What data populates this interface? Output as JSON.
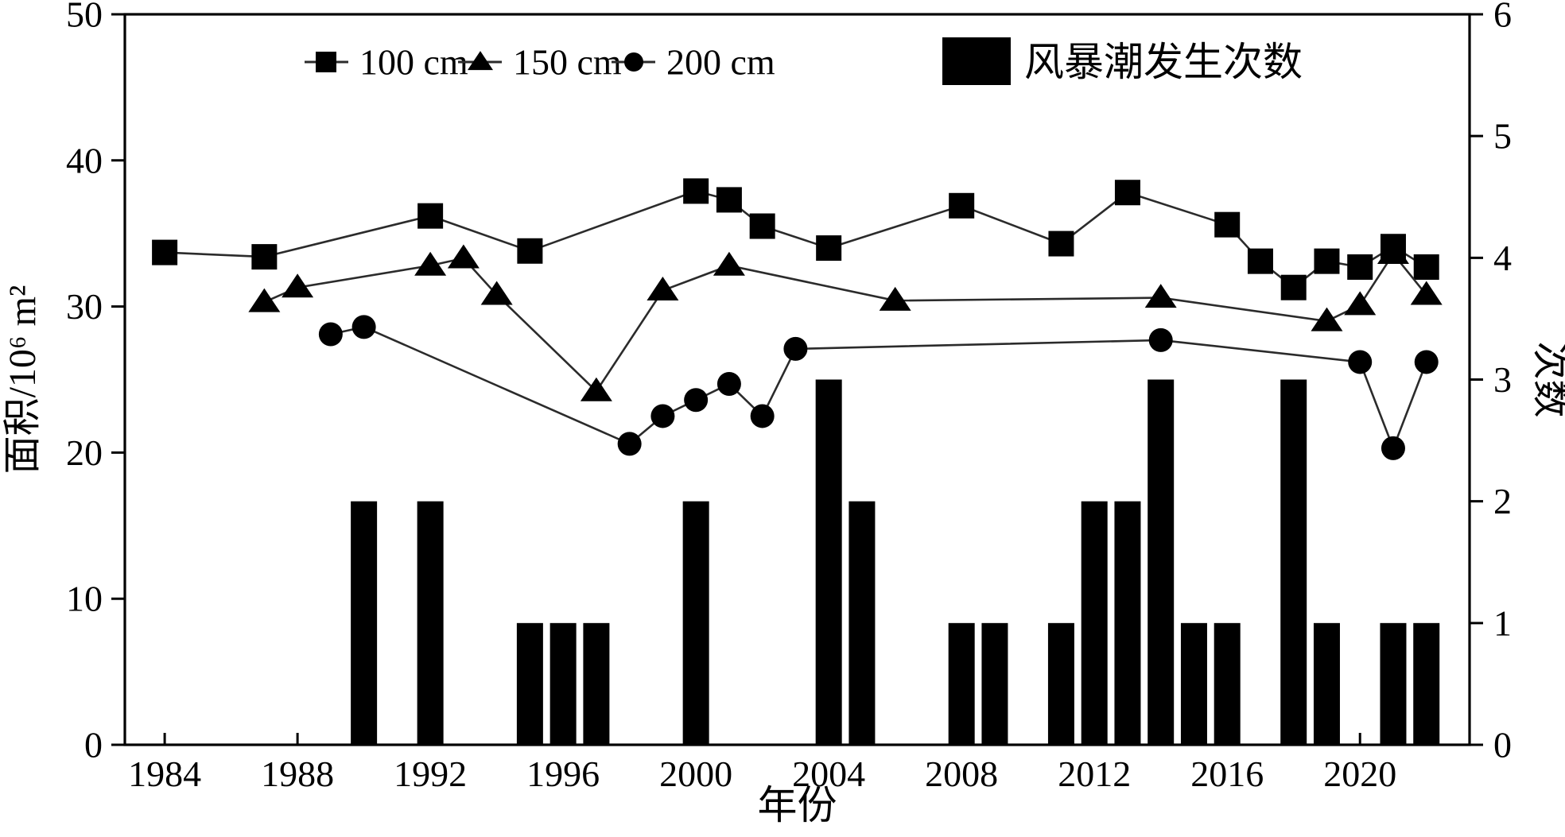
{
  "chart_data": {
    "type": "line+bar",
    "title": "",
    "x_axis": {
      "label": "年份",
      "min": 1982.8,
      "max": 2023.3,
      "tick_labels": [
        1984,
        1988,
        1992,
        1996,
        2000,
        2004,
        2008,
        2012,
        2016,
        2020
      ]
    },
    "left_axis": {
      "label": "面积/10⁶ m²",
      "min": 0,
      "max": 50,
      "ticks": [
        0,
        10,
        20,
        30,
        40,
        50
      ]
    },
    "right_axis": {
      "label": "次数",
      "min": 0,
      "max": 6,
      "ticks": [
        0,
        1,
        2,
        3,
        4,
        5,
        6
      ]
    },
    "grid": "off",
    "legend_position": "top-inside",
    "series": [
      {
        "name": "100 cm",
        "marker": "square",
        "color": "#000000",
        "points": [
          [
            1984,
            33.7
          ],
          [
            1987,
            33.4
          ],
          [
            1992,
            36.2
          ],
          [
            1995,
            33.8
          ],
          [
            2000,
            37.9
          ],
          [
            2001,
            37.3
          ],
          [
            2002,
            35.5
          ],
          [
            2004,
            34.0
          ],
          [
            2008,
            36.9
          ],
          [
            2011,
            34.3
          ],
          [
            2013,
            37.8
          ],
          [
            2016,
            35.6
          ],
          [
            2017,
            33.1
          ],
          [
            2018,
            31.3
          ],
          [
            2019,
            33.1
          ],
          [
            2020,
            32.7
          ],
          [
            2021,
            34.1
          ],
          [
            2022,
            32.7
          ]
        ]
      },
      {
        "name": "150 cm",
        "marker": "triangle",
        "color": "#000000",
        "points": [
          [
            1987,
            30.3
          ],
          [
            1988,
            31.3
          ],
          [
            1992,
            32.8
          ],
          [
            1993,
            33.3
          ],
          [
            1994,
            30.8
          ],
          [
            1997,
            24.2
          ],
          [
            1999,
            31.1
          ],
          [
            2001,
            32.8
          ],
          [
            2006,
            30.4
          ],
          [
            2014,
            30.6
          ],
          [
            2019,
            29.0
          ],
          [
            2020,
            30.1
          ],
          [
            2021,
            33.6
          ],
          [
            2022,
            30.8
          ]
        ]
      },
      {
        "name": "200 cm",
        "marker": "circle",
        "color": "#000000",
        "points": [
          [
            1989,
            28.1
          ],
          [
            1990,
            28.6
          ],
          [
            1998,
            20.6
          ],
          [
            1999,
            22.5
          ],
          [
            2000,
            23.6
          ],
          [
            2001,
            24.7
          ],
          [
            2002,
            22.5
          ],
          [
            2003,
            27.1
          ],
          [
            2014,
            27.7
          ],
          [
            2020,
            26.2
          ],
          [
            2021,
            20.3
          ],
          [
            2022,
            26.2
          ]
        ]
      }
    ],
    "bars": {
      "name": "风暴潮发生次数",
      "axis": "right",
      "color": "#000000",
      "bar_width_years": 0.8,
      "points": [
        [
          1990,
          2
        ],
        [
          1992,
          2
        ],
        [
          1995,
          1
        ],
        [
          1996,
          1
        ],
        [
          1997,
          1
        ],
        [
          2000,
          2
        ],
        [
          2004,
          3
        ],
        [
          2005,
          2
        ],
        [
          2008,
          1
        ],
        [
          2009,
          1
        ],
        [
          2011,
          1
        ],
        [
          2012,
          2
        ],
        [
          2013,
          2
        ],
        [
          2014,
          3
        ],
        [
          2015,
          1
        ],
        [
          2016,
          1
        ],
        [
          2018,
          3
        ],
        [
          2019,
          1
        ],
        [
          2021,
          1
        ],
        [
          2022,
          1
        ]
      ]
    }
  }
}
